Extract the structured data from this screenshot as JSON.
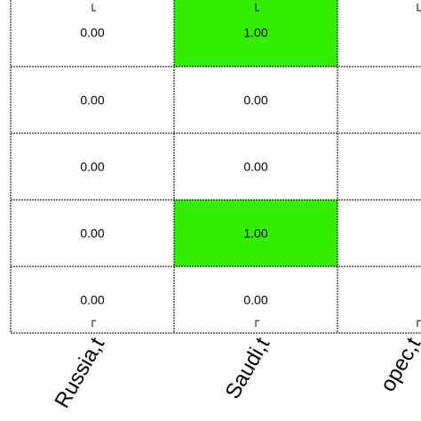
{
  "chart_data": {
    "type": "heatmap",
    "title": "",
    "xlabel": "",
    "ylabel": "",
    "x_categories": [
      "Russia,t",
      "Saudi,t",
      "opec,t"
    ],
    "rows": [
      [
        0.0,
        1.0,
        null
      ],
      [
        0.0,
        0.0,
        null
      ],
      [
        0.0,
        0.0,
        null
      ],
      [
        0.0,
        1.0,
        null
      ],
      [
        0.0,
        0.0,
        null
      ]
    ],
    "value_format": "0.00",
    "highlight_value": 1.0,
    "colors": {
      "highlight": "#33ee00",
      "default": "#ffffff",
      "grid": "#000000"
    },
    "grid": true
  }
}
